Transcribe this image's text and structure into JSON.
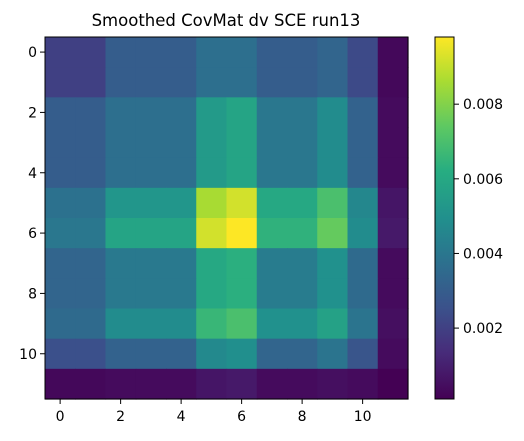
{
  "chart_data": {
    "type": "heatmap",
    "title": "Smoothed CovMat dv SCE run13",
    "xlabel": "",
    "ylabel": "",
    "xlim": [
      -0.5,
      11.5
    ],
    "ylim": [
      11.5,
      -0.5
    ],
    "x_ticks": [
      0,
      2,
      4,
      6,
      8,
      10
    ],
    "y_ticks": [
      0,
      2,
      4,
      6,
      8,
      10
    ],
    "colormap": "viridis",
    "colorbar": {
      "range": [
        0.0001,
        0.0098
      ],
      "ticks": [
        0.002,
        0.004,
        0.006,
        0.008
      ],
      "tick_labels": [
        "0.002",
        "0.004",
        "0.006",
        "0.008"
      ]
    },
    "matrix": [
      [
        0.002,
        0.002,
        0.003,
        0.003,
        0.003,
        0.0037,
        0.0037,
        0.003,
        0.003,
        0.0033,
        0.0023,
        0.0003
      ],
      [
        0.002,
        0.002,
        0.003,
        0.003,
        0.003,
        0.0037,
        0.0037,
        0.003,
        0.003,
        0.0033,
        0.0023,
        0.0003
      ],
      [
        0.003,
        0.003,
        0.0037,
        0.0037,
        0.0037,
        0.0054,
        0.0058,
        0.004,
        0.004,
        0.0048,
        0.0032,
        0.0004
      ],
      [
        0.003,
        0.003,
        0.0037,
        0.0037,
        0.0037,
        0.0054,
        0.0058,
        0.004,
        0.004,
        0.0048,
        0.0032,
        0.0004
      ],
      [
        0.003,
        0.003,
        0.0037,
        0.0037,
        0.0037,
        0.0054,
        0.0058,
        0.004,
        0.004,
        0.0048,
        0.0032,
        0.0004
      ],
      [
        0.0038,
        0.0038,
        0.0052,
        0.0052,
        0.0052,
        0.0086,
        0.0092,
        0.006,
        0.006,
        0.007,
        0.0046,
        0.0007
      ],
      [
        0.004,
        0.004,
        0.0058,
        0.0058,
        0.0058,
        0.0092,
        0.0098,
        0.0064,
        0.0064,
        0.0075,
        0.0048,
        0.0008
      ],
      [
        0.0033,
        0.0033,
        0.0041,
        0.0041,
        0.0041,
        0.006,
        0.0063,
        0.0042,
        0.0042,
        0.005,
        0.0035,
        0.0004
      ],
      [
        0.0033,
        0.0033,
        0.0041,
        0.0041,
        0.0041,
        0.006,
        0.0063,
        0.0042,
        0.0042,
        0.005,
        0.0035,
        0.0004
      ],
      [
        0.0035,
        0.0035,
        0.0048,
        0.0048,
        0.0048,
        0.0066,
        0.007,
        0.005,
        0.005,
        0.0057,
        0.0039,
        0.0005
      ],
      [
        0.0025,
        0.0025,
        0.0032,
        0.0032,
        0.0032,
        0.0047,
        0.0049,
        0.0033,
        0.0033,
        0.0039,
        0.0027,
        0.0004
      ],
      [
        0.0003,
        0.0003,
        0.0004,
        0.0004,
        0.0004,
        0.0007,
        0.0008,
        0.0004,
        0.0004,
        0.0005,
        0.0004,
        0.0001
      ]
    ]
  }
}
